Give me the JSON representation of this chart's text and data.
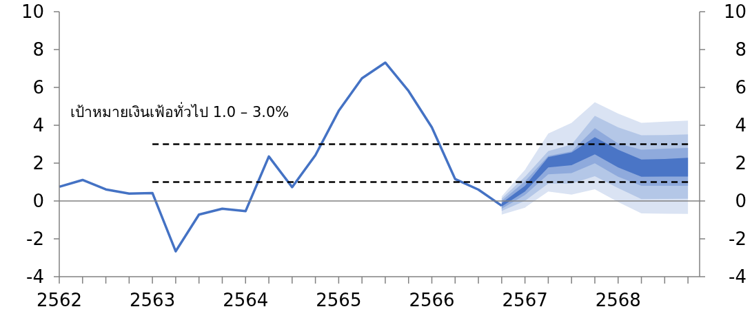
{
  "chart_data": {
    "type": "line",
    "categories": [
      "2562",
      null,
      null,
      null,
      "2563",
      null,
      null,
      null,
      "2564",
      null,
      null,
      null,
      "2565",
      null,
      null,
      null,
      "2566",
      null,
      null,
      null,
      "2567",
      null,
      null,
      null,
      "2568",
      null,
      null,
      null
    ],
    "ylim": [
      -4,
      10
    ],
    "yticks": [
      -4,
      -2,
      0,
      2,
      4,
      6,
      8,
      10
    ],
    "y2lim": [
      -4,
      10
    ],
    "y2ticks": [
      -4,
      -2,
      0,
      2,
      4,
      6,
      8,
      10
    ],
    "grid": false,
    "marker": "none",
    "annotations": [
      "เป้าหมายเงินเฟ้อทั่วไป 1.0 – 3.0%"
    ],
    "ref_lines": [
      {
        "axis": "y",
        "value": 0,
        "color": "#808080",
        "line_style": "solid"
      }
    ],
    "series": [
      {
        "color": "#dae3f3",
        "values": [
          null,
          null,
          null,
          null,
          null,
          null,
          null,
          null,
          null,
          null,
          null,
          null,
          null,
          null,
          null,
          null,
          null,
          null,
          null,
          null,
          null,
          null,
          null,
          null,
          null,
          null,
          null,
          null
        ],
        "lower": [
          null,
          null,
          null,
          null,
          null,
          null,
          null,
          null,
          null,
          null,
          null,
          null,
          null,
          null,
          null,
          null,
          null,
          null,
          null,
          -0.72,
          -0.35,
          0.5,
          0.34,
          0.62,
          -0.05,
          -0.65,
          -0.67,
          -0.68
        ],
        "upper": [
          null,
          null,
          null,
          null,
          null,
          null,
          null,
          null,
          null,
          null,
          null,
          null,
          null,
          null,
          null,
          null,
          null,
          null,
          null,
          0.25,
          1.65,
          3.56,
          4.13,
          5.22,
          4.62,
          4.13,
          4.19,
          4.25
        ]
      },
      {
        "color": "#b4c7e7",
        "values": [
          null,
          null,
          null,
          null,
          null,
          null,
          null,
          null,
          null,
          null,
          null,
          null,
          null,
          null,
          null,
          null,
          null,
          null,
          null,
          null,
          null,
          null,
          null,
          null,
          null,
          null,
          null,
          null
        ],
        "lower": [
          null,
          null,
          null,
          null,
          null,
          null,
          null,
          null,
          null,
          null,
          null,
          null,
          null,
          null,
          null,
          null,
          null,
          null,
          null,
          -0.53,
          0.01,
          0.92,
          0.92,
          1.31,
          0.68,
          0.1,
          0.11,
          0.12
        ],
        "upper": [
          null,
          null,
          null,
          null,
          null,
          null,
          null,
          null,
          null,
          null,
          null,
          null,
          null,
          null,
          null,
          null,
          null,
          null,
          null,
          0.13,
          1.28,
          2.64,
          2.98,
          4.5,
          3.89,
          3.47,
          3.48,
          3.52
        ]
      },
      {
        "color": "#8faadc",
        "values": [
          null,
          null,
          null,
          null,
          null,
          null,
          null,
          null,
          null,
          null,
          null,
          null,
          null,
          null,
          null,
          null,
          null,
          null,
          null,
          null,
          null,
          null,
          null,
          null,
          null,
          null,
          null,
          null
        ],
        "lower": [
          null,
          null,
          null,
          null,
          null,
          null,
          null,
          null,
          null,
          null,
          null,
          null,
          null,
          null,
          null,
          null,
          null,
          null,
          null,
          -0.41,
          0.32,
          1.41,
          1.47,
          1.99,
          1.28,
          0.8,
          0.8,
          0.8
        ],
        "upper": [
          null,
          null,
          null,
          null,
          null,
          null,
          null,
          null,
          null,
          null,
          null,
          null,
          null,
          null,
          null,
          null,
          null,
          null,
          null,
          0.01,
          1.04,
          2.38,
          2.62,
          3.85,
          3.04,
          2.71,
          2.76,
          2.8
        ]
      },
      {
        "color": "#4a75c6",
        "values": [
          null,
          null,
          null,
          null,
          null,
          null,
          null,
          null,
          null,
          null,
          null,
          null,
          null,
          null,
          null,
          null,
          null,
          null,
          null,
          null,
          null,
          null,
          null,
          null,
          null,
          null,
          null,
          null
        ],
        "lower": [
          null,
          null,
          null,
          null,
          null,
          null,
          null,
          null,
          null,
          null,
          null,
          null,
          null,
          null,
          null,
          null,
          null,
          null,
          null,
          -0.29,
          0.5,
          1.77,
          1.89,
          2.46,
          1.77,
          1.28,
          1.29,
          1.29
        ],
        "upper": [
          null,
          null,
          null,
          null,
          null,
          null,
          null,
          null,
          null,
          null,
          null,
          null,
          null,
          null,
          null,
          null,
          null,
          null,
          null,
          -0.11,
          0.8,
          2.32,
          2.56,
          3.37,
          2.71,
          2.19,
          2.22,
          2.28
        ]
      },
      {
        "color": "#4472c4",
        "line_style": "solid",
        "values": [
          0.75,
          1.11,
          0.61,
          0.39,
          0.42,
          -2.66,
          -0.72,
          -0.41,
          -0.54,
          2.35,
          0.73,
          2.42,
          4.76,
          6.48,
          7.31,
          5.81,
          3.89,
          1.16,
          0.6,
          -0.25,
          null,
          null,
          null,
          null,
          null,
          null,
          null,
          null
        ]
      },
      {
        "color": "#000000",
        "line_style": "dashed",
        "values": [
          null,
          null,
          null,
          null,
          1,
          1,
          1,
          1,
          1,
          1,
          1,
          1,
          1,
          1,
          1,
          1,
          1,
          1,
          1,
          1,
          1,
          1,
          1,
          1,
          1,
          1,
          1,
          1
        ]
      },
      {
        "color": "#000000",
        "line_style": "dashed",
        "values": [
          null,
          null,
          null,
          null,
          3,
          3,
          3,
          3,
          3,
          3,
          3,
          3,
          3,
          3,
          3,
          3,
          3,
          3,
          3,
          3,
          3,
          3,
          3,
          3,
          3,
          3,
          3,
          3
        ]
      }
    ]
  }
}
